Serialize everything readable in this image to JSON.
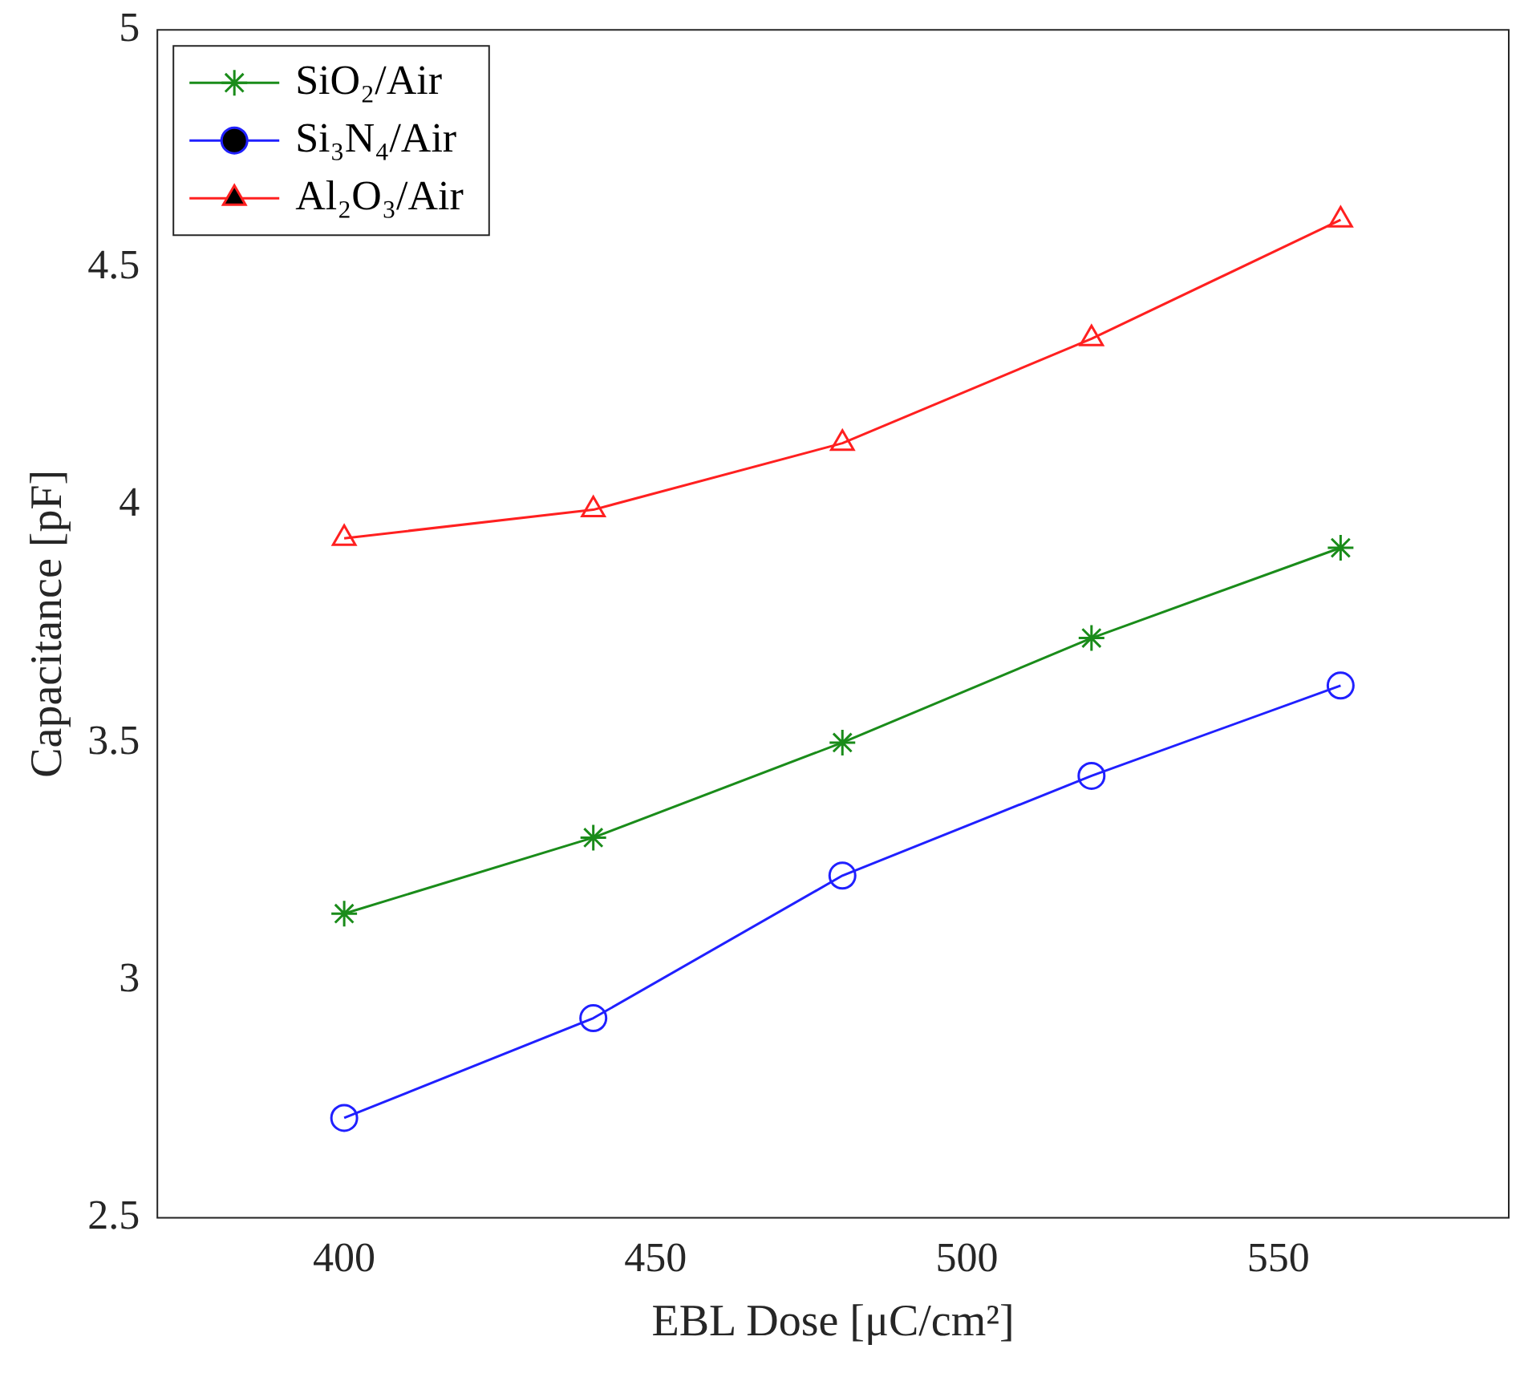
{
  "chart_data": {
    "type": "line",
    "xlabel": "EBL Dose [μC/cm²]",
    "ylabel": "Capacitance [pF]",
    "x": [
      400,
      440,
      480,
      520,
      560
    ],
    "series": [
      {
        "name": "SiO₂/Air",
        "color": "#1a8c1a",
        "marker": "cross",
        "values": [
          3.14,
          3.3,
          3.5,
          3.72,
          3.91
        ]
      },
      {
        "name": "Si₃N₄/Air",
        "color": "#2020ff",
        "marker": "circle",
        "values": [
          2.71,
          2.92,
          3.22,
          3.43,
          3.62
        ]
      },
      {
        "name": "Al₂O₃/Air",
        "color": "#ff2020",
        "marker": "triangle",
        "values": [
          3.93,
          3.99,
          4.13,
          4.35,
          4.6
        ]
      }
    ],
    "xlim": [
      370,
      587
    ],
    "xticks": [
      400,
      450,
      500,
      550
    ],
    "ylim": [
      2.5,
      5
    ],
    "yticks": [
      2.5,
      3,
      3.5,
      4,
      4.5,
      5
    ],
    "grid": false,
    "legend": "top left",
    "line_style": "solid"
  }
}
